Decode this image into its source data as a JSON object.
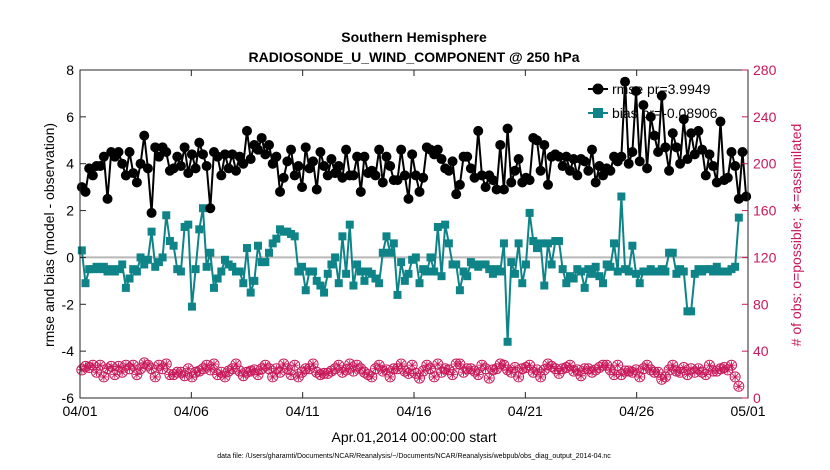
{
  "chart_data": {
    "type": "line",
    "title": [
      "Southern Hemisphere",
      "RADIOSONDE_U_WIND_COMPONENT @ 250 hPa"
    ],
    "xlabel": "Apr.01,2014 00:00:00 start",
    "ylabel": "rmse and bias (model - observation)",
    "y2label": "# of obs: o=possible; ∗=assimilated",
    "footnote": "data file: /Users/gharamti/Documents/NCAR/Reanalysis/~/Documents/NCAR/Reanalysis/webpub/obs_diag_output_2014-04.nc",
    "xlim": [
      0,
      30
    ],
    "ylim": [
      -6,
      8
    ],
    "y2lim": [
      0,
      280
    ],
    "x_tick_labels": [
      "04/01",
      "04/06",
      "04/11",
      "04/16",
      "04/21",
      "04/26",
      "05/01"
    ],
    "x_tick_values": [
      0,
      5,
      10,
      15,
      20,
      25,
      30
    ],
    "y_ticks": [
      -6,
      -4,
      -2,
      0,
      2,
      4,
      6,
      8
    ],
    "y2_ticks": [
      0,
      40,
      80,
      120,
      160,
      200,
      240,
      280
    ],
    "series": [
      {
        "name": "rmse",
        "legend": "rmse pr=3.9949",
        "color": "#000000",
        "axis": "left",
        "values": [
          3.0,
          2.8,
          3.8,
          3.5,
          3.9,
          3.9,
          4.3,
          2.5,
          4.5,
          4.3,
          4.5,
          4.0,
          3.5,
          4.5,
          3.6,
          3.2,
          4.0,
          5.2,
          3.8,
          1.9,
          4.7,
          4.3,
          4.7,
          4.5,
          3.7,
          3.8,
          4.3,
          3.9,
          4.7,
          3.6,
          4.4,
          3.8,
          4.9,
          4.4,
          3.9,
          2.1,
          4.5,
          4.3,
          3.5,
          4.4,
          3.8,
          4.4,
          3.7,
          4.3,
          4.0,
          5.4,
          4.2,
          4.8,
          4.6,
          5.1,
          4.4,
          4.8,
          4.0,
          4.3,
          2.8,
          3.4,
          4.1,
          4.6,
          3.5,
          3.9,
          3.0,
          4.7,
          3.8,
          4.1,
          2.9,
          4.5,
          3.9,
          3.5,
          4.2,
          3.6,
          3.9,
          3.4,
          4.6,
          3.5,
          3.5,
          4.3,
          2.8,
          4.3,
          3.6,
          3.7,
          3.5,
          4.6,
          3.2,
          4.3,
          3.9,
          3.3,
          3.3,
          4.6,
          3.5,
          2.5,
          4.4,
          3.5,
          2.8,
          3.4,
          4.7,
          4.6,
          4.4,
          4.6,
          4.2,
          3.8,
          3.7,
          4.1,
          2.7,
          3.1,
          4.3,
          4.3,
          3.8,
          3.4,
          5.4,
          3.5,
          3.0,
          3.5,
          3.3,
          2.9,
          4.8,
          2.9,
          5.5,
          3.2,
          3.7,
          4.2,
          3.2,
          3.4,
          3.3,
          5.1,
          5.0,
          3.7,
          4.8,
          3.1,
          4.3,
          4.4,
          4.3,
          3.9,
          4.3,
          3.7,
          4.2,
          3.5,
          4.2,
          4.1,
          3.7,
          4.6,
          3.2,
          3.9,
          3.5,
          3.8,
          3.7,
          4.3,
          4.1,
          4.3,
          7.5,
          4.0,
          4.5,
          7.1,
          4.1,
          6.5,
          3.8,
          6.0,
          5.2,
          4.5,
          6.9,
          4.7,
          3.7,
          5.3,
          4.7,
          4.0,
          5.9,
          4.2,
          5.3,
          4.4,
          5.4,
          4.6,
          3.5,
          4.4,
          3.9,
          3.2,
          5.8,
          3.3,
          3.4,
          4.5,
          3.9,
          2.5,
          4.5,
          2.6
        ]
      },
      {
        "name": "bias",
        "legend": "bias pr=-0.08906",
        "color": "#0e8488",
        "axis": "left",
        "values": [
          0.3,
          -1.1,
          -0.5,
          -0.5,
          -0.4,
          -0.5,
          -0.4,
          -0.6,
          -0.5,
          -0.6,
          -0.5,
          -0.3,
          -1.3,
          -0.9,
          -0.5,
          -0.6,
          0.0,
          -0.3,
          -0.1,
          1.1,
          -0.4,
          -0.2,
          0.0,
          1.8,
          0.7,
          0.5,
          -0.5,
          -0.6,
          1.3,
          1.4,
          -2.1,
          -0.5,
          1.2,
          2.1,
          -0.4,
          0.2,
          -1.3,
          -0.9,
          -0.6,
          -0.1,
          -0.3,
          -0.4,
          -0.6,
          -0.6,
          -1.1,
          0.4,
          -1.5,
          -1.0,
          0.5,
          -0.2,
          -0.2,
          0.2,
          0.6,
          0.8,
          1.2,
          1.1,
          1.1,
          1.0,
          0.9,
          -0.6,
          -0.4,
          -1.4,
          -0.6,
          -0.6,
          -1.0,
          -1.2,
          -1.5,
          -0.7,
          -0.3,
          0.0,
          -1.1,
          0.9,
          -0.7,
          1.4,
          -1.2,
          -0.3,
          -0.6,
          -1.0,
          -0.6,
          -0.7,
          -0.9,
          -1.1,
          0.2,
          0.9,
          0.2,
          0.6,
          -1.6,
          -0.2,
          -1.0,
          -0.7,
          -0.1,
          0.0,
          -1.1,
          -0.5,
          -0.6,
          0.0,
          -0.6,
          1.3,
          -0.8,
          1.4,
          0.6,
          -0.3,
          -0.3,
          -1.4,
          -0.6,
          -0.8,
          -0.2,
          -0.3,
          -0.4,
          -0.3,
          -0.3,
          -0.5,
          -0.7,
          -0.5,
          -0.6,
          0.6,
          -3.6,
          -0.2,
          -0.7,
          0.6,
          -1.1,
          -0.3,
          1.9,
          0.7,
          0.4,
          0.6,
          -1.2,
          0.6,
          -0.3,
          0.7,
          0.7,
          -0.5,
          -1.1,
          -0.8,
          -0.9,
          -0.5,
          -0.6,
          -1.3,
          -0.5,
          -0.7,
          -0.4,
          -0.8,
          -1.1,
          -0.3,
          -0.4,
          0.6,
          -0.6,
          2.6,
          -0.5,
          -0.6,
          0.5,
          -0.7,
          -1.1,
          -0.6,
          -0.6,
          -0.5,
          -0.6,
          -0.6,
          -0.5,
          -0.6,
          0.2,
          0.2,
          -0.7,
          -0.5,
          -0.6,
          -2.3,
          -2.3,
          -0.7,
          -0.5,
          -0.6,
          -0.5,
          -0.5,
          -0.6,
          -0.4,
          -0.6,
          -0.6,
          -0.6,
          -0.5,
          -0.4,
          1.7
        ]
      },
      {
        "name": "possible_obs",
        "marker": "open circle",
        "color": "#c8185a",
        "axis": "right",
        "values": [
          24,
          27,
          26,
          28,
          22,
          28,
          18,
          25,
          27,
          20,
          27,
          22,
          28,
          25,
          28,
          20,
          25,
          30,
          28,
          25,
          18,
          28,
          25,
          29,
          20,
          20,
          22,
          22,
          19,
          25,
          18,
          22,
          23,
          25,
          28,
          24,
          29,
          20,
          22,
          18,
          23,
          25,
          29,
          23,
          19,
          22,
          23,
          24,
          20,
          25,
          28,
          25,
          18,
          25,
          22,
          29,
          25,
          20,
          28,
          18,
          22,
          25,
          25,
          29,
          22,
          20,
          21,
          21,
          23,
          25,
          28,
          22,
          24,
          29,
          23,
          28,
          25,
          22,
          20,
          18,
          25,
          28,
          23,
          24,
          18,
          25,
          25,
          29,
          23,
          21,
          28,
          21,
          17,
          23,
          28,
          25,
          18,
          29,
          22,
          25,
          24,
          20,
          29,
          29,
          22,
          25,
          25,
          23,
          20,
          28,
          25,
          17,
          24,
          25,
          29,
          28,
          24,
          22,
          26,
          18,
          25,
          26,
          28,
          22,
          24,
          18,
          24,
          29,
          27,
          25,
          21,
          25,
          26,
          28,
          23,
          24,
          19,
          25,
          25,
          22,
          24,
          26,
          28,
          28,
          24,
          20,
          28,
          20,
          23,
          23,
          22,
          24,
          18,
          25,
          28,
          24,
          22,
          22,
          16,
          18,
          24,
          28,
          23,
          22,
          26,
          20,
          25,
          22,
          25,
          22,
          20,
          28,
          23,
          23,
          25,
          26,
          24,
          28,
          18,
          10
        ]
      }
    ]
  }
}
